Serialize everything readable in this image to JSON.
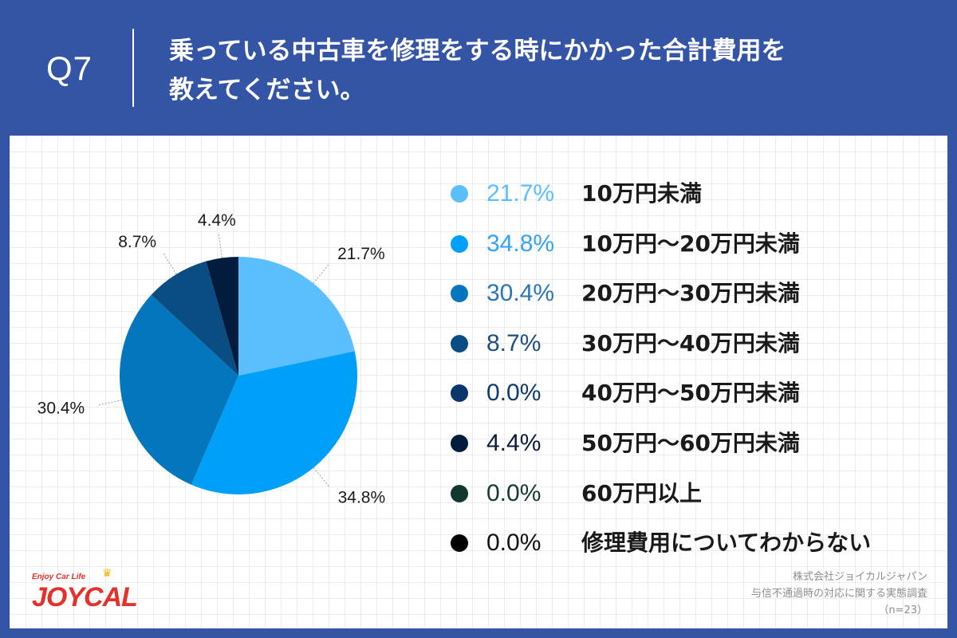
{
  "header": {
    "question_no": "Q7",
    "question_line1": "乗っている中古車を修理をする時にかかった合計費用を",
    "question_line2": "教えてください。"
  },
  "chart_data": {
    "type": "pie",
    "slices": [
      {
        "category": "10万円未満",
        "value": 21.7,
        "label": "21.7%",
        "color": "#5bbffd",
        "pct_color": "#5bbffd"
      },
      {
        "category": "10万円〜20万円未満",
        "value": 34.8,
        "label": "34.8%",
        "color": "#00a0f8",
        "pct_color": "#35a3f0"
      },
      {
        "category": "20万円〜30万円未満",
        "value": 30.4,
        "label": "30.4%",
        "color": "#0376bd",
        "pct_color": "#2a74b8"
      },
      {
        "category": "30万円〜40万円未満",
        "value": 8.7,
        "label": "8.7%",
        "color": "#0a4d83",
        "pct_color": "#1f4e80"
      },
      {
        "category": "40万円〜50万円未満",
        "value": 0.0,
        "label": "0.0%",
        "color": "#09376a",
        "pct_color": "#0e3a6d"
      },
      {
        "category": "50万円〜60万円未満",
        "value": 4.4,
        "label": "4.4%",
        "color": "#021c3e",
        "pct_color": "#0b1c3b"
      },
      {
        "category": "60万円以上",
        "value": 0.0,
        "label": "0.0%",
        "color": "#11372f",
        "pct_color": "#133a33"
      },
      {
        "category": "修理費用についてわからない",
        "value": 0.0,
        "label": "0.0%",
        "color": "#000000",
        "pct_color": "#111111"
      }
    ]
  },
  "footer": {
    "company": "株式会社ジョイカルジャパン",
    "survey": "与信不通過時の対応に関する実態調査",
    "n": "（n=23）"
  },
  "logo": {
    "tagline": "Enjoy Car Life",
    "wordmark": "JOYCAL"
  }
}
